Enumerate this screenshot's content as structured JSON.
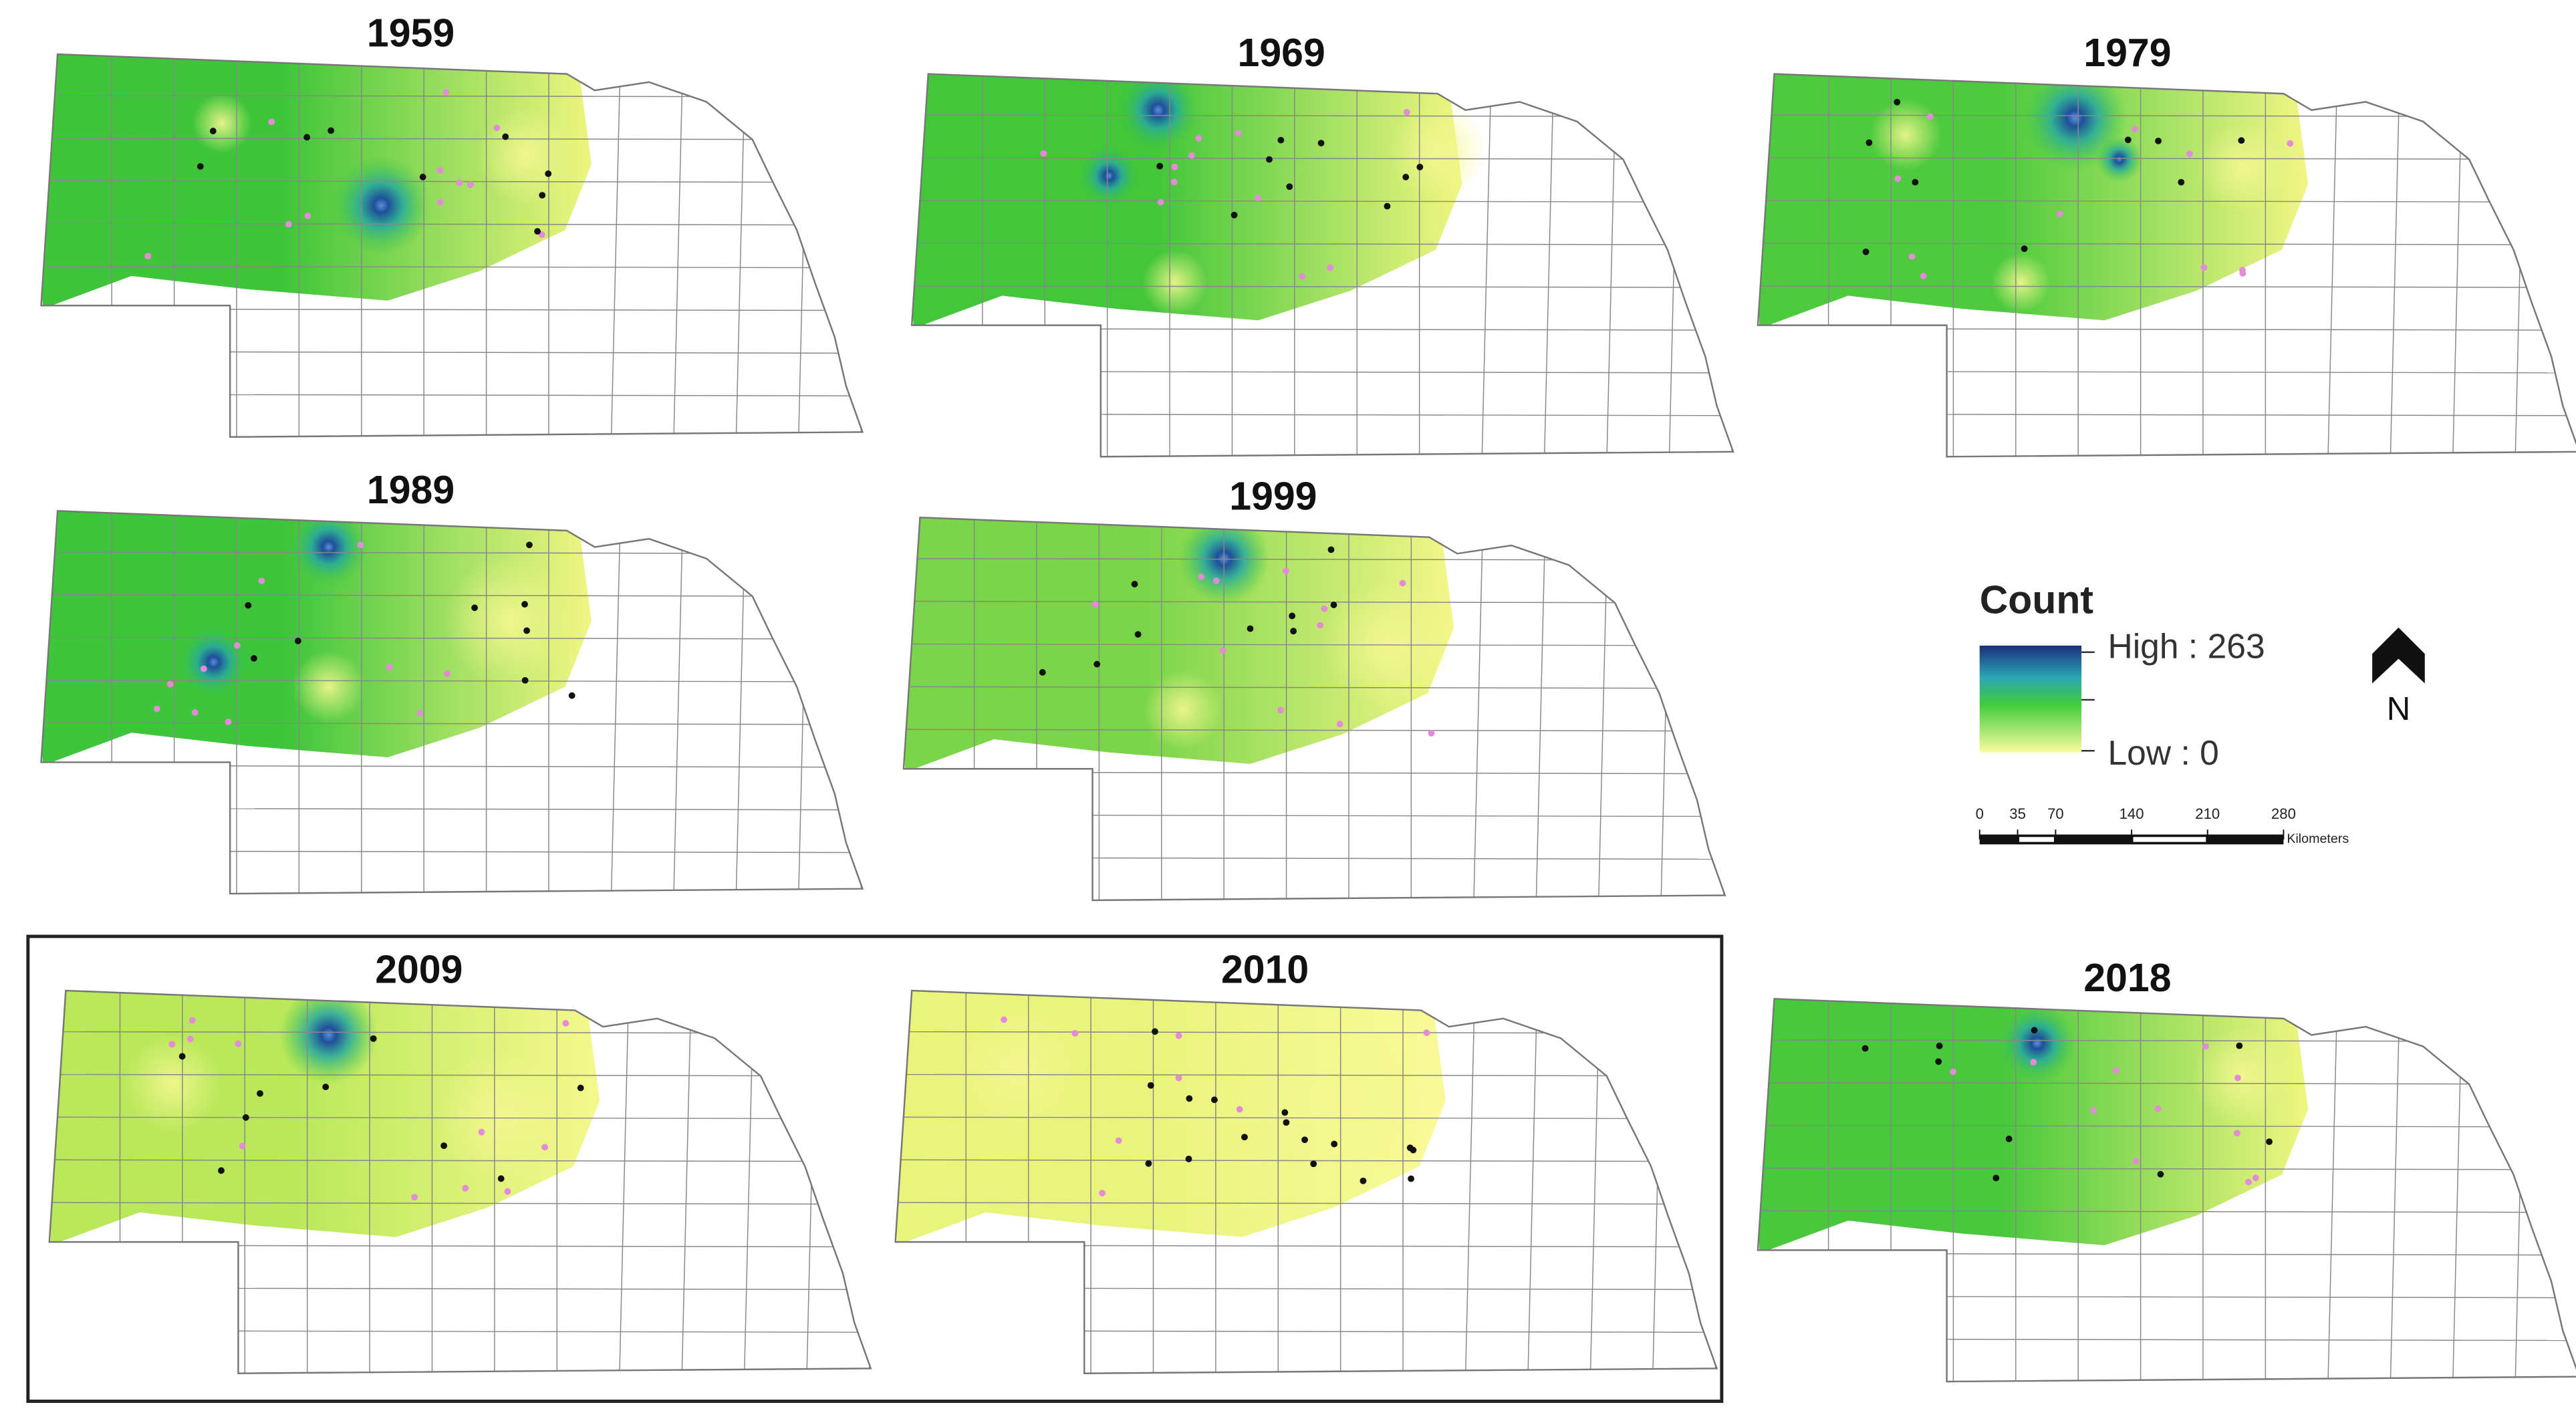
{
  "maps": [
    {
      "year": "1959"
    },
    {
      "year": "1969"
    },
    {
      "year": "1979"
    },
    {
      "year": "1989"
    },
    {
      "year": "1999"
    },
    {
      "year": "2009"
    },
    {
      "year": "2010"
    },
    {
      "year": "2018"
    }
  ],
  "legend": {
    "title": "Count",
    "high": "High : 263",
    "low": "Low : 0"
  },
  "scale_bar": {
    "ticks": [
      0,
      35,
      70,
      140,
      210,
      280
    ],
    "unit": "Kilometers"
  },
  "north_label": "N"
}
